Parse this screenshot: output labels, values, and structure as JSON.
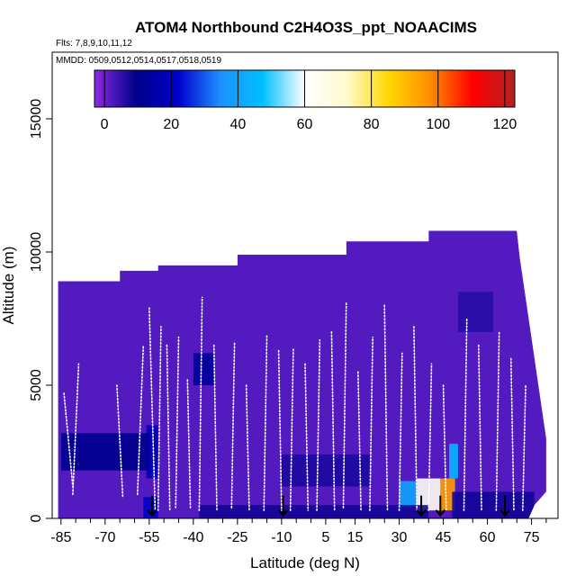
{
  "chart_data": {
    "type": "heatmap",
    "title": "ATOM4 Northbound C2H4O3S_ppt_NOAACIMS",
    "subtitle_flights": "Flts: 7,8,9,10,11,12",
    "subtitle_dates": "MMDD: 0509,0512,0514,0517,0518,0519",
    "xlabel": "Latitude (deg N)",
    "ylabel": "Altitude (m)",
    "xlim": [
      -88,
      84
    ],
    "ylim": [
      0,
      17500
    ],
    "x_ticks": [
      -85,
      -70,
      -55,
      -40,
      -25,
      -10,
      5,
      15,
      30,
      45,
      60,
      75
    ],
    "x_tick_labels": [
      "-85",
      "-70",
      "-55",
      "-40",
      "-25",
      "-10",
      "5",
      "15",
      "30",
      "45",
      "60",
      "75"
    ],
    "y_ticks": [
      0,
      5000,
      10000,
      15000
    ],
    "y_tick_labels": [
      "0",
      "5000",
      "10000",
      "15000"
    ],
    "colorbar": {
      "ticks": [
        0,
        20,
        40,
        60,
        80,
        100,
        120
      ],
      "tick_labels": [
        "0",
        "20",
        "40",
        "60",
        "80",
        "100",
        "120"
      ],
      "range": [
        -3,
        123
      ],
      "colors": [
        "#8a2be2",
        "#00008b",
        "#0000cd",
        "#1e90ff",
        "#00bfff",
        "#ffffff",
        "#fffacd",
        "#ffd700",
        "#ff8c00",
        "#ff0000",
        "#b22222"
      ]
    },
    "background_value": 2,
    "coverage_polygon": [
      [
        -86,
        0
      ],
      [
        -86,
        8900
      ],
      [
        -65,
        8900
      ],
      [
        -65,
        9300
      ],
      [
        -52,
        9300
      ],
      [
        -52,
        9500
      ],
      [
        -25,
        9500
      ],
      [
        -25,
        9900
      ],
      [
        12,
        9900
      ],
      [
        12,
        10400
      ],
      [
        40,
        10400
      ],
      [
        40,
        10800
      ],
      [
        70,
        10800
      ],
      [
        71,
        9800
      ],
      [
        80,
        3000
      ],
      [
        80,
        1000
      ],
      [
        76,
        500
      ],
      [
        74,
        0
      ]
    ],
    "enhancements": [
      {
        "lat": [
          44,
          49
        ],
        "alt": [
          300,
          1500
        ],
        "value": 95
      },
      {
        "lat": [
          36,
          44
        ],
        "alt": [
          300,
          1500
        ],
        "value": 62
      },
      {
        "lat": [
          30,
          36
        ],
        "alt": [
          400,
          1400
        ],
        "value": 40
      },
      {
        "lat": [
          47,
          50
        ],
        "alt": [
          1500,
          2800
        ],
        "value": 45
      },
      {
        "lat": [
          -57,
          -52
        ],
        "alt": [
          0,
          800
        ],
        "value": 22
      },
      {
        "lat": [
          -56,
          -52
        ],
        "alt": [
          1500,
          3500
        ],
        "value": 18
      },
      {
        "lat": [
          -85,
          -55
        ],
        "alt": [
          1800,
          3200
        ],
        "value": 10
      },
      {
        "lat": [
          -38,
          40
        ],
        "alt": [
          0,
          500
        ],
        "value": 8
      },
      {
        "lat": [
          48,
          76
        ],
        "alt": [
          0,
          1000
        ],
        "value": 8
      },
      {
        "lat": [
          -40,
          -33
        ],
        "alt": [
          5000,
          6200
        ],
        "value": 12
      },
      {
        "lat": [
          -10,
          20
        ],
        "alt": [
          1200,
          2400
        ],
        "value": 7
      },
      {
        "lat": [
          50,
          62
        ],
        "alt": [
          7000,
          8500
        ],
        "value": 6
      }
    ],
    "flight_profiles": [
      {
        "lat": [
          -84,
          -81
        ],
        "alt": [
          4700,
          1200
        ]
      },
      {
        "lat": [
          -81,
          -79
        ],
        "alt": [
          900,
          5800
        ]
      },
      {
        "lat": [
          -66,
          -64
        ],
        "alt": [
          5000,
          800
        ]
      },
      {
        "lat": [
          -59,
          -57
        ],
        "alt": [
          900,
          6500
        ]
      },
      {
        "lat": [
          -55,
          -53
        ],
        "alt": [
          7900,
          300
        ]
      },
      {
        "lat": [
          -52,
          -51
        ],
        "alt": [
          300,
          7200
        ]
      },
      {
        "lat": [
          -49,
          -48
        ],
        "alt": [
          6500,
          300
        ]
      },
      {
        "lat": [
          -46,
          -45
        ],
        "alt": [
          400,
          6800
        ]
      },
      {
        "lat": [
          -42,
          -41
        ],
        "alt": [
          5200,
          400
        ]
      },
      {
        "lat": [
          -38,
          -37
        ],
        "alt": [
          300,
          8300
        ]
      },
      {
        "lat": [
          -33,
          -32
        ],
        "alt": [
          6500,
          300
        ]
      },
      {
        "lat": [
          -27,
          -26
        ],
        "alt": [
          400,
          6600
        ]
      },
      {
        "lat": [
          -22,
          -21
        ],
        "alt": [
          5000,
          300
        ]
      },
      {
        "lat": [
          -16,
          -15
        ],
        "alt": [
          300,
          6900
        ]
      },
      {
        "lat": [
          -11,
          -10
        ],
        "alt": [
          6300,
          300
        ]
      },
      {
        "lat": [
          -7,
          -6
        ],
        "alt": [
          300,
          6400
        ]
      },
      {
        "lat": [
          -2,
          -1
        ],
        "alt": [
          5800,
          300
        ]
      },
      {
        "lat": [
          2,
          3
        ],
        "alt": [
          300,
          6700
        ]
      },
      {
        "lat": [
          7,
          8
        ],
        "alt": [
          7000,
          300
        ]
      },
      {
        "lat": [
          11,
          12
        ],
        "alt": [
          400,
          8100
        ]
      },
      {
        "lat": [
          16,
          17
        ],
        "alt": [
          5500,
          300
        ]
      },
      {
        "lat": [
          20,
          21
        ],
        "alt": [
          300,
          6800
        ]
      },
      {
        "lat": [
          25,
          26
        ],
        "alt": [
          8000,
          300
        ]
      },
      {
        "lat": [
          30,
          31
        ],
        "alt": [
          300,
          6200
        ]
      },
      {
        "lat": [
          35,
          36
        ],
        "alt": [
          7200,
          300
        ]
      },
      {
        "lat": [
          40,
          41
        ],
        "alt": [
          300,
          5800
        ]
      },
      {
        "lat": [
          45,
          46
        ],
        "alt": [
          5000,
          300
        ]
      },
      {
        "lat": [
          52,
          53
        ],
        "alt": [
          300,
          7500
        ]
      },
      {
        "lat": [
          57,
          58
        ],
        "alt": [
          6500,
          300
        ]
      },
      {
        "lat": [
          63,
          64
        ],
        "alt": [
          300,
          7000
        ]
      },
      {
        "lat": [
          68,
          69
        ],
        "alt": [
          6000,
          300
        ]
      },
      {
        "lat": [
          72,
          73
        ],
        "alt": [
          300,
          5000
        ]
      }
    ],
    "marker_arrows": [
      {
        "lat": -54,
        "alt": 450
      },
      {
        "lat": -9.5,
        "alt": 450
      },
      {
        "lat": 37.5,
        "alt": 450
      },
      {
        "lat": 44,
        "alt": 450
      },
      {
        "lat": 66,
        "alt": 450
      }
    ],
    "legend_position": "top",
    "grid": false
  }
}
